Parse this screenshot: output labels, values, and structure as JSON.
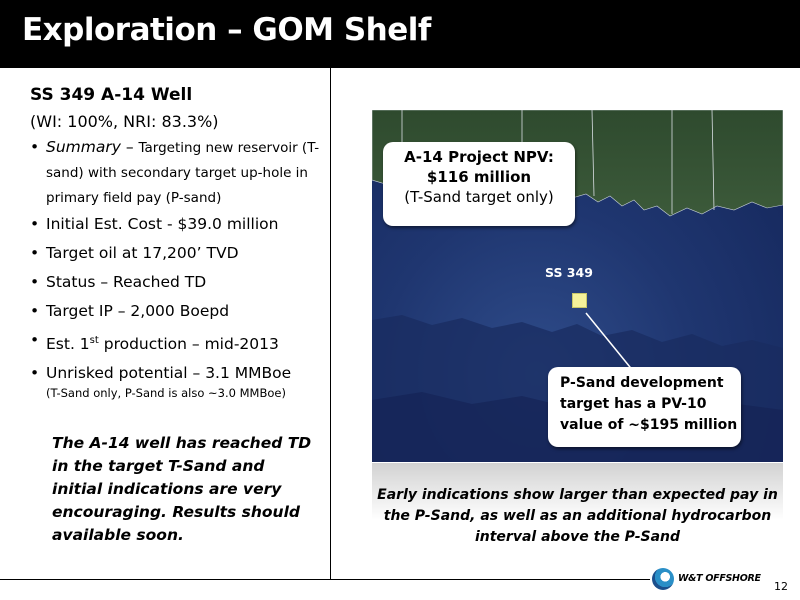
{
  "title": "Exploration – GOM Shelf",
  "left": {
    "well_title": "SS 349 A-14 Well",
    "interest": "(WI: 100%, NRI: 83.3%)",
    "summary_label": "Summary",
    "summary_dash": " – ",
    "summary_text": "Targeting new reservoir (T-sand) with secondary target up-hole in primary field pay (P-sand)",
    "bullet_cost": "Initial Est. Cost - $39.0 million",
    "bullet_target": "Target oil at 17,200’ TVD",
    "bullet_status": "Status – Reached TD",
    "bullet_ip": "Target IP – 2,000 Boepd",
    "bullet_prod_pre": "Est. 1",
    "bullet_prod_sup": "st",
    "bullet_prod_post": " production  – mid-2013",
    "bullet_potential": "Unrisked potential  – 3.1 MMBoe",
    "note": "(T-Sand only, P-Sand is also ~3.0 MMBoe)",
    "callout": "The A-14 well has reached TD in the target T-Sand and initial indications are very encouraging.  Results should available soon."
  },
  "map": {
    "npv_line1": "A-14 Project NPV:",
    "npv_line2": "$116 million",
    "npv_line3": "(T-Sand target only)",
    "site_label": "SS 349",
    "psand_text": "P-Sand development target has a PV-10 value of ~$195 million",
    "marker_color": "#f5f29a"
  },
  "caption": "Early indications show larger than expected pay in the P-Sand, as well as an additional hydrocarbon interval above the P-Sand",
  "logo_text": "W&T OFFSHORE",
  "page_number": "12"
}
